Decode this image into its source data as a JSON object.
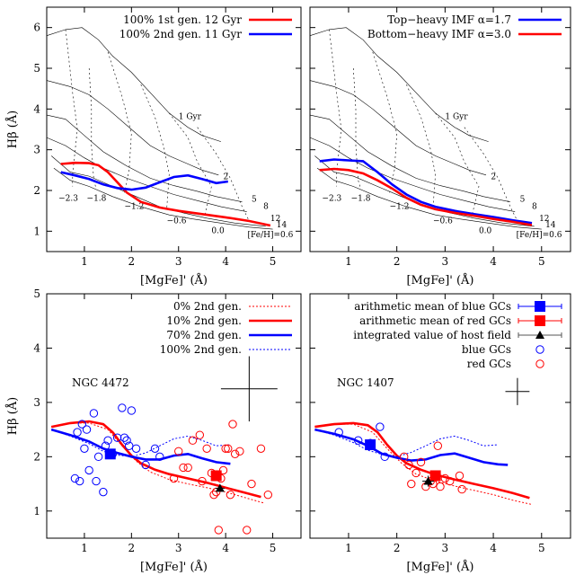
{
  "chart_data": [
    {
      "type": "line",
      "panel": "top-left",
      "xlabel": "[MgFe]' (Å)",
      "ylabel": "Hβ (Å)",
      "xlim": [
        0.2,
        5.6
      ],
      "ylim": [
        0.5,
        6.5
      ],
      "xticks": [
        "1",
        "2",
        "3",
        "4",
        "5"
      ],
      "yticks": [
        "1",
        "2",
        "3",
        "4",
        "5",
        "6"
      ],
      "legend_position": "top-right",
      "grid_labels": {
        "age": [
          "1 Gyr",
          "2",
          "5",
          "8",
          "12",
          "14"
        ],
        "metallicity": [
          "-2.3",
          "-1.8",
          "-1.2",
          "-0.6",
          "0.0",
          "[Fe/H]=0.6"
        ]
      },
      "series": [
        {
          "name": "100% 1st gen. 12 Gyr",
          "color": "#ff0000",
          "x": [
            0.5,
            0.8,
            1.1,
            1.3,
            1.5,
            1.7,
            1.9,
            2.2,
            2.6,
            3.0,
            3.5,
            4.0,
            4.5,
            4.95
          ],
          "y": [
            2.65,
            2.68,
            2.67,
            2.62,
            2.45,
            2.2,
            1.95,
            1.72,
            1.58,
            1.5,
            1.42,
            1.34,
            1.25,
            1.14
          ]
        },
        {
          "name": "100% 2nd gen. 11 Gyr",
          "color": "#0000ff",
          "x": [
            0.5,
            0.8,
            1.1,
            1.4,
            1.7,
            2.0,
            2.3,
            2.6,
            2.9,
            3.2,
            3.5,
            3.8,
            4.05
          ],
          "y": [
            2.45,
            2.37,
            2.28,
            2.15,
            2.06,
            2.02,
            2.07,
            2.2,
            2.33,
            2.37,
            2.28,
            2.18,
            2.22
          ]
        }
      ]
    },
    {
      "type": "line",
      "panel": "top-right",
      "xlabel": "[MgFe]' (Å)",
      "ylabel": "",
      "xlim": [
        0.2,
        5.6
      ],
      "ylim": [
        0.5,
        6.5
      ],
      "xticks": [
        "1",
        "2",
        "3",
        "4",
        "5"
      ],
      "legend_position": "top-right",
      "grid_labels": {
        "age": [
          "1 Gyr",
          "2",
          "5",
          "8",
          "12",
          "14"
        ],
        "metallicity": [
          "-2.3",
          "-1.8",
          "-1.2",
          "-0.6",
          "0.0",
          "[Fe/H]=0.6"
        ]
      },
      "series": [
        {
          "name": "Top−heavy IMF α=1.7",
          "color": "#0000ff",
          "x": [
            0.4,
            0.7,
            1.0,
            1.3,
            1.6,
            1.9,
            2.2,
            2.5,
            2.8,
            3.2,
            3.6,
            4.0,
            4.4,
            4.8
          ],
          "y": [
            2.72,
            2.76,
            2.74,
            2.72,
            2.45,
            2.15,
            1.9,
            1.72,
            1.6,
            1.5,
            1.42,
            1.35,
            1.27,
            1.2
          ]
        },
        {
          "name": "Bottom−heavy IMF α=3.0",
          "color": "#ff0000",
          "x": [
            0.4,
            0.7,
            1.0,
            1.3,
            1.6,
            1.9,
            2.2,
            2.5,
            2.8,
            3.2,
            3.6,
            4.0,
            4.4,
            4.8
          ],
          "y": [
            2.5,
            2.53,
            2.5,
            2.42,
            2.25,
            2.05,
            1.82,
            1.65,
            1.54,
            1.45,
            1.38,
            1.3,
            1.23,
            1.15
          ]
        }
      ]
    },
    {
      "type": "scatter",
      "panel": "bottom-left",
      "galaxy": "NGC 4472",
      "xlabel": "[MgFe]' (Å)",
      "ylabel": "Hβ (Å)",
      "xlim": [
        0.2,
        5.6
      ],
      "ylim": [
        0.5,
        5.0
      ],
      "xticks": [
        "1",
        "2",
        "3",
        "4",
        "5"
      ],
      "yticks": [
        "1",
        "2",
        "3",
        "4",
        "5"
      ],
      "legend_position": "top-right",
      "legend": [
        "0% 2nd gen.",
        "10% 2nd gen.",
        "70% 2nd gen.",
        "100% 2nd gen."
      ],
      "lines": [
        {
          "name": "0% 2nd gen.",
          "color": "#ff0000",
          "dash": "dotted",
          "x": [
            0.3,
            0.7,
            1.1,
            1.5,
            1.8,
            2.1,
            2.4,
            2.8,
            3.2,
            3.6,
            4.0,
            4.4,
            4.8
          ],
          "y": [
            2.55,
            2.62,
            2.62,
            2.5,
            2.2,
            1.92,
            1.72,
            1.58,
            1.5,
            1.43,
            1.35,
            1.25,
            1.15
          ]
        },
        {
          "name": "10% 2nd gen.",
          "color": "#ff0000",
          "dash": "solid",
          "x": [
            0.3,
            0.7,
            1.1,
            1.4,
            1.6,
            1.8,
            2.0,
            2.2,
            2.5,
            2.8,
            3.2,
            3.6,
            4.0,
            4.4,
            4.75
          ],
          "y": [
            2.55,
            2.62,
            2.65,
            2.6,
            2.45,
            2.22,
            2.02,
            1.88,
            1.76,
            1.68,
            1.6,
            1.52,
            1.43,
            1.34,
            1.26
          ]
        },
        {
          "name": "70% 2nd gen.",
          "color": "#0000ff",
          "dash": "solid",
          "x": [
            0.3,
            0.7,
            1.1,
            1.4,
            1.7,
            2.0,
            2.3,
            2.6,
            2.9,
            3.2,
            3.5,
            3.8,
            4.1
          ],
          "y": [
            2.5,
            2.4,
            2.28,
            2.15,
            2.07,
            2.0,
            1.95,
            1.95,
            2.02,
            2.05,
            1.97,
            1.9,
            1.87
          ]
        },
        {
          "name": "100% 2nd gen.",
          "color": "#0000ff",
          "dash": "dotted",
          "x": [
            0.3,
            0.7,
            1.1,
            1.4,
            1.7,
            2.0,
            2.3,
            2.6,
            2.9,
            3.2,
            3.5,
            3.8,
            4.1
          ],
          "y": [
            2.5,
            2.38,
            2.24,
            2.1,
            2.03,
            2.0,
            2.07,
            2.2,
            2.33,
            2.38,
            2.3,
            2.2,
            2.22
          ]
        }
      ],
      "blue_gcs": {
        "x": [
          0.8,
          0.9,
          0.85,
          1.0,
          1.1,
          1.2,
          1.25,
          1.3,
          1.4,
          1.45,
          1.5,
          1.6,
          1.7,
          1.8,
          1.85,
          1.9,
          1.95,
          2.0,
          2.1,
          2.3,
          2.5,
          2.6,
          0.95,
          1.05
        ],
        "y": [
          1.6,
          1.55,
          2.45,
          2.15,
          1.75,
          2.8,
          1.55,
          2.0,
          1.35,
          2.2,
          2.3,
          2.05,
          2.35,
          2.9,
          2.35,
          2.3,
          2.2,
          2.85,
          2.15,
          1.85,
          2.15,
          2.0,
          2.6,
          2.5
        ]
      },
      "red_gcs": {
        "x": [
          2.9,
          3.0,
          3.1,
          3.2,
          3.3,
          3.45,
          3.5,
          3.6,
          3.7,
          3.75,
          3.8,
          3.85,
          3.9,
          3.95,
          4.0,
          4.05,
          4.1,
          4.15,
          4.2,
          4.3,
          4.45,
          4.55,
          4.9,
          4.75
        ],
        "y": [
          1.6,
          2.1,
          1.8,
          1.8,
          2.3,
          2.4,
          1.55,
          2.15,
          1.7,
          1.3,
          1.35,
          0.65,
          1.6,
          1.75,
          2.15,
          2.15,
          1.3,
          2.6,
          2.05,
          2.1,
          0.65,
          1.5,
          1.3,
          2.15
        ]
      },
      "blue_mean": {
        "x": 1.55,
        "y": 2.05,
        "xerr": 0.1,
        "yerr": 0.05
      },
      "red_mean": {
        "x": 3.8,
        "y": 1.65,
        "xerr": 0.1,
        "yerr": 0.05
      },
      "host_field": {
        "x": 3.88,
        "y": 1.42,
        "xerr": 0.1,
        "yerr": 0.06
      },
      "typical_error": {
        "x": 4.5,
        "y": 3.25,
        "xerr": 0.6,
        "yerr": 0.6
      }
    },
    {
      "type": "scatter",
      "panel": "bottom-right",
      "galaxy": "NGC 1407",
      "xlabel": "[MgFe]' (Å)",
      "ylabel": "",
      "xlim": [
        0.2,
        5.6
      ],
      "ylim": [
        0.5,
        5.0
      ],
      "xticks": [
        "1",
        "2",
        "3",
        "4",
        "5"
      ],
      "legend_position": "top-right",
      "legend": [
        "arithmetic mean of blue GCs",
        "arithmetic mean of red GCs",
        "integrated value of host field",
        "blue GCs",
        "red GCs"
      ],
      "lines": [
        {
          "name": "0% 2nd gen.",
          "color": "#ff0000",
          "dash": "dotted",
          "x": [
            0.3,
            0.7,
            1.1,
            1.5,
            1.8,
            2.1,
            2.4,
            2.8,
            3.2,
            3.6,
            4.0,
            4.4,
            4.8
          ],
          "y": [
            2.55,
            2.6,
            2.6,
            2.45,
            2.15,
            1.88,
            1.68,
            1.55,
            1.46,
            1.38,
            1.3,
            1.2,
            1.12
          ]
        },
        {
          "name": "10% 2nd gen.",
          "color": "#ff0000",
          "dash": "solid",
          "x": [
            0.3,
            0.7,
            1.1,
            1.4,
            1.6,
            1.8,
            2.0,
            2.2,
            2.5,
            2.8,
            3.2,
            3.6,
            4.0,
            4.4,
            4.75
          ],
          "y": [
            2.55,
            2.6,
            2.62,
            2.58,
            2.45,
            2.22,
            2.02,
            1.88,
            1.76,
            1.67,
            1.58,
            1.5,
            1.42,
            1.33,
            1.24
          ]
        },
        {
          "name": "70% 2nd gen.",
          "color": "#0000ff",
          "dash": "solid",
          "x": [
            0.3,
            0.7,
            1.1,
            1.4,
            1.7,
            2.0,
            2.3,
            2.6,
            2.9,
            3.2,
            3.5,
            3.8,
            4.1,
            4.3
          ],
          "y": [
            2.5,
            2.42,
            2.32,
            2.2,
            2.05,
            1.98,
            1.93,
            1.95,
            2.03,
            2.06,
            1.98,
            1.9,
            1.86,
            1.85
          ]
        },
        {
          "name": "100% 2nd gen.",
          "color": "#0000ff",
          "dash": "dotted",
          "x": [
            0.3,
            0.7,
            1.1,
            1.4,
            1.7,
            2.0,
            2.3,
            2.6,
            2.9,
            3.2,
            3.5,
            3.8,
            4.1
          ],
          "y": [
            2.5,
            2.4,
            2.26,
            2.12,
            2.04,
            2.0,
            2.08,
            2.2,
            2.33,
            2.38,
            2.3,
            2.2,
            2.22
          ]
        }
      ],
      "blue_gcs": {
        "x": [
          0.8,
          1.2,
          1.45,
          1.65,
          1.75
        ],
        "y": [
          2.45,
          2.3,
          2.25,
          2.55,
          2.0
        ]
      },
      "red_gcs": {
        "x": [
          2.15,
          2.25,
          2.3,
          2.4,
          2.5,
          2.6,
          2.7,
          2.75,
          2.85,
          2.9,
          3.0,
          3.1,
          3.3,
          3.35
        ],
        "y": [
          2.0,
          1.85,
          1.5,
          1.7,
          1.9,
          1.45,
          1.55,
          1.5,
          2.2,
          1.45,
          1.6,
          1.55,
          1.65,
          1.4
        ]
      },
      "blue_mean": {
        "x": 1.45,
        "y": 2.22,
        "xerr": 0.08,
        "yerr": 0.05
      },
      "red_mean": {
        "x": 2.8,
        "y": 1.65,
        "xerr": 0.08,
        "yerr": 0.05
      },
      "host_field": {
        "x": 2.65,
        "y": 1.55,
        "xerr": 0.12,
        "yerr": 0.1
      },
      "typical_error": {
        "x": 4.5,
        "y": 3.2,
        "xerr": 0.25,
        "yerr": 0.25
      }
    }
  ]
}
